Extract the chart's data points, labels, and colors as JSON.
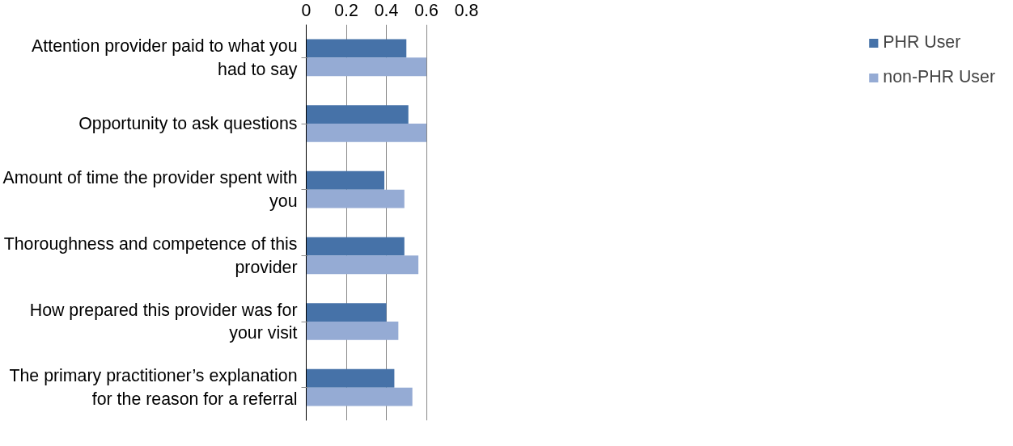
{
  "chart_data": {
    "type": "bar",
    "orientation": "horizontal",
    "categories": [
      "Attention provider paid to what you had to say",
      "Opportunity to ask questions",
      "Amount of time the provider spent with you",
      "Thoroughness and competence of this provider",
      "How prepared this provider was for your visit",
      "The primary practitioner’s explanation for the reason for a referral"
    ],
    "series": [
      {
        "name": "PHR User",
        "color": "#4672a8",
        "values": [
          0.5,
          0.51,
          0.39,
          0.49,
          0.4,
          0.44
        ]
      },
      {
        "name": "non-PHR User",
        "color": "#95abd4",
        "values": [
          0.6,
          0.6,
          0.49,
          0.56,
          0.46,
          0.53
        ]
      }
    ],
    "xlim": [
      0,
      0.8
    ],
    "xticks": [
      0,
      0.2,
      0.4,
      0.6,
      0.8
    ],
    "grid": "x",
    "legend": "right"
  }
}
